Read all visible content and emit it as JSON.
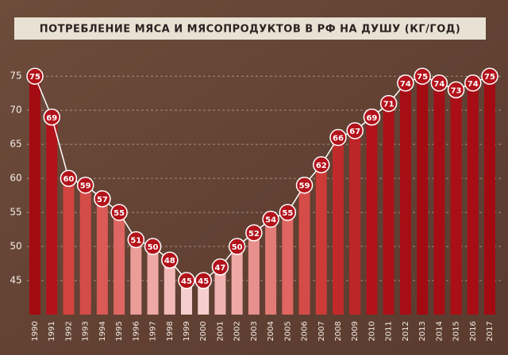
{
  "chart_data": {
    "type": "bar",
    "title": "ПОТРЕБЛЕНИЕ МЯСА И МЯСОПРОДУКТОВ В РФ НА ДУШУ (КГ/ГОД)",
    "categories": [
      "1990",
      "1991",
      "1992",
      "1993",
      "1994",
      "1995",
      "1996",
      "1997",
      "1998",
      "1999",
      "2000",
      "2001",
      "2002",
      "2003",
      "2004",
      "2005",
      "2006",
      "2007",
      "2008",
      "2009",
      "2010",
      "2011",
      "2012",
      "2013",
      "2014",
      "2015",
      "2016",
      "2017"
    ],
    "values": [
      75,
      69,
      60,
      59,
      57,
      55,
      51,
      50,
      48,
      45,
      45,
      47,
      50,
      52,
      54,
      55,
      59,
      62,
      66,
      67,
      69,
      71,
      74,
      75,
      74,
      73,
      74,
      75
    ],
    "colors": [
      "#a30b12",
      "#b3121b",
      "#d2443f",
      "#d44c47",
      "#da5a55",
      "#df6662",
      "#eb9d9a",
      "#eea9a6",
      "#f2b9b7",
      "#f5cfcd",
      "#f5cfcd",
      "#f0b3b1",
      "#eea9a6",
      "#e7908d",
      "#e27a76",
      "#df6662",
      "#d44c47",
      "#cc3b37",
      "#c02a2a",
      "#bd2628",
      "#b3121b",
      "#ad1019",
      "#a70d15",
      "#a30b12",
      "#a70d15",
      "#aa0e17",
      "#a70d15",
      "#a30b12"
    ],
    "ylim": [
      40,
      77
    ],
    "yticks": [
      45,
      50,
      55,
      60,
      65,
      70,
      75
    ],
    "grid": true
  }
}
